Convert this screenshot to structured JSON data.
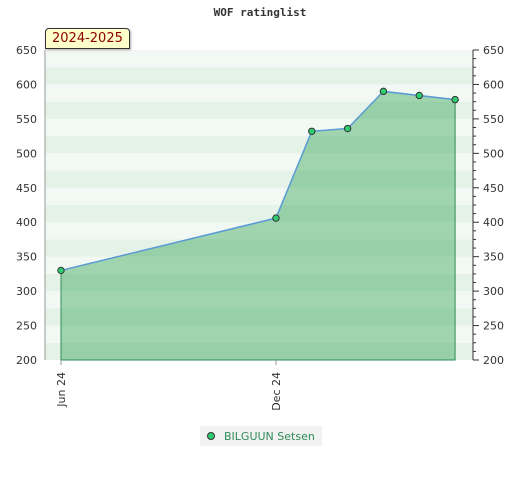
{
  "chart_data": {
    "type": "area",
    "title": "WOF ratinglist",
    "season_label": "2024-2025",
    "ylim": [
      200,
      650
    ],
    "yticks": [
      200,
      250,
      300,
      350,
      400,
      450,
      500,
      550,
      600,
      650
    ],
    "xticks": [
      {
        "label": "Jun 24",
        "index": 0
      },
      {
        "label": "Dec 24",
        "index": 6
      }
    ],
    "x_range": [
      0,
      11.5
    ],
    "series": [
      {
        "name": "BILGUUN Setsen",
        "color": "#2ecc71",
        "points": [
          {
            "x": 0,
            "y": 330
          },
          {
            "x": 6,
            "y": 406
          },
          {
            "x": 7,
            "y": 532
          },
          {
            "x": 8,
            "y": 536
          },
          {
            "x": 9,
            "y": 590
          },
          {
            "x": 10,
            "y": 584
          },
          {
            "x": 11,
            "y": 578
          }
        ]
      }
    ],
    "legend_position": "bottom-center"
  }
}
